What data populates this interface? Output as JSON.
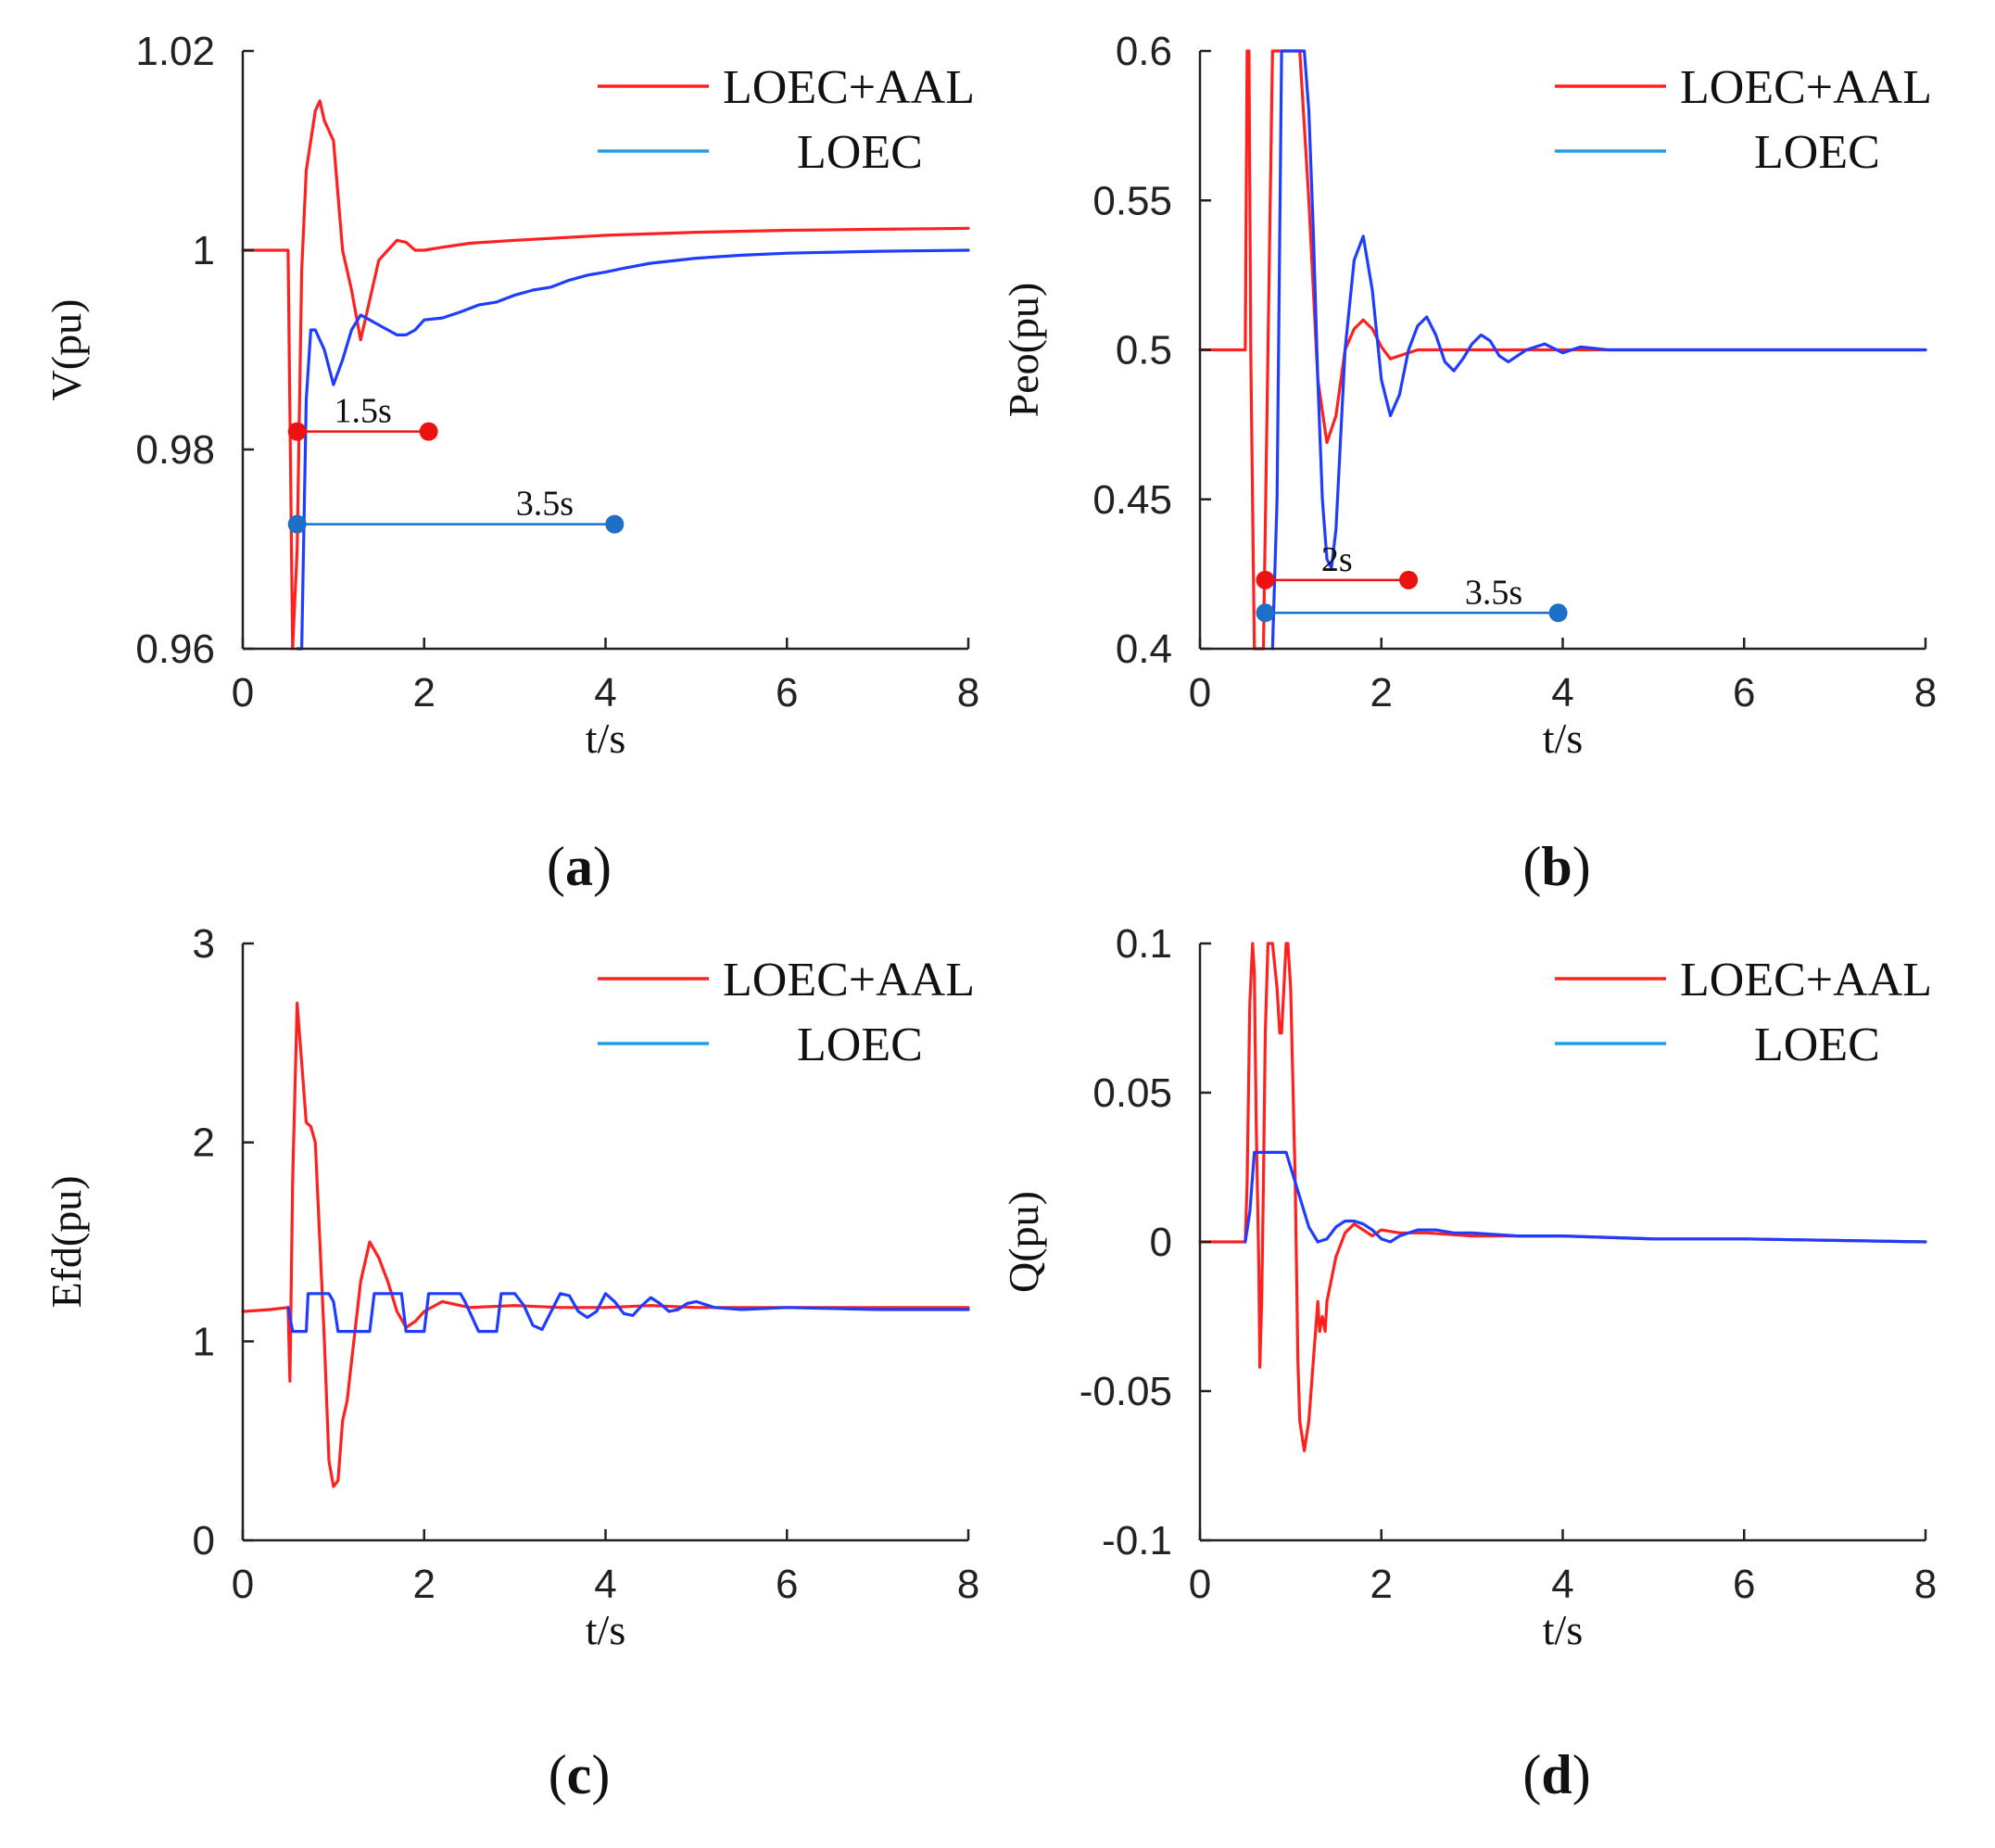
{
  "colors": {
    "loec_aal": "#ff2020",
    "loec": "#1f3dff",
    "loec_legend": "#1ea0e6",
    "marker_red": "#ee1111",
    "marker_blue": "#1e6fc8",
    "axis": "#222222"
  },
  "chart_data": [
    {
      "type": "line",
      "panel": "(a)",
      "panel_letter": "a",
      "xlabel": "t/s",
      "ylabel": "V(pu)",
      "xlim": [
        0,
        8
      ],
      "ylim": [
        0.96,
        1.02
      ],
      "xticks": [
        0,
        2,
        4,
        6,
        8
      ],
      "xtick_labels": [
        "0",
        "2",
        "4",
        "6",
        "8"
      ],
      "yticks": [
        0.96,
        0.98,
        1.0,
        1.02
      ],
      "ytick_labels": [
        "0.96",
        "0.98",
        "1",
        "1.02"
      ],
      "legend": {
        "position": "top-right",
        "entries": [
          "LOEC+AAL",
          "LOEC"
        ]
      },
      "series": [
        {
          "name": "LOEC+AAL",
          "x": [
            0,
            0.5,
            0.5,
            0.55,
            0.6,
            0.65,
            0.7,
            0.8,
            0.85,
            0.9,
            1.0,
            1.1,
            1.2,
            1.3,
            1.4,
            1.5,
            1.6,
            1.7,
            1.8,
            1.9,
            2.0,
            2.2,
            2.5,
            3.0,
            4.0,
            5.0,
            6.0,
            7.0,
            8.0
          ],
          "values": [
            1.0,
            1.0,
            1.0,
            0.958,
            0.97,
            0.998,
            1.008,
            1.014,
            1.015,
            1.013,
            1.011,
            1.0,
            0.996,
            0.991,
            0.995,
            0.999,
            1.0,
            1.001,
            1.0008,
            1.0,
            1.0,
            1.0003,
            1.0007,
            1.001,
            1.0015,
            1.0018,
            1.002,
            1.0021,
            1.0022
          ]
        },
        {
          "name": "LOEC",
          "x": [
            0.6,
            0.65,
            0.7,
            0.75,
            0.8,
            0.9,
            1.0,
            1.1,
            1.2,
            1.3,
            1.4,
            1.5,
            1.6,
            1.7,
            1.8,
            1.9,
            2.0,
            2.2,
            2.4,
            2.6,
            2.8,
            3.0,
            3.2,
            3.4,
            3.6,
            3.8,
            4.0,
            4.2,
            4.5,
            5.0,
            5.5,
            6.0,
            7.0,
            8.0
          ],
          "values": [
            0.958,
            0.96,
            0.985,
            0.992,
            0.992,
            0.99,
            0.9865,
            0.989,
            0.992,
            0.9935,
            0.993,
            0.9925,
            0.992,
            0.9915,
            0.9915,
            0.992,
            0.993,
            0.9932,
            0.9938,
            0.9945,
            0.9948,
            0.9955,
            0.996,
            0.9963,
            0.997,
            0.9975,
            0.9978,
            0.9982,
            0.9987,
            0.9992,
            0.9995,
            0.9997,
            0.9999,
            1.0
          ]
        }
      ],
      "annotations": [
        {
          "label": "1.5s",
          "x1": 0.6,
          "x2": 2.05,
          "y": 0.9818,
          "color": "red"
        },
        {
          "label": "3.5s",
          "x1": 0.6,
          "x2": 4.1,
          "y": 0.9725,
          "color": "blue"
        }
      ]
    },
    {
      "type": "line",
      "panel": "(b)",
      "panel_letter": "b",
      "xlabel": "t/s",
      "ylabel": "Peo(pu)",
      "xlim": [
        0,
        8
      ],
      "ylim": [
        0.4,
        0.6
      ],
      "xticks": [
        0,
        2,
        4,
        6,
        8
      ],
      "xtick_labels": [
        "0",
        "2",
        "4",
        "6",
        "8"
      ],
      "yticks": [
        0.4,
        0.45,
        0.5,
        0.55,
        0.6
      ],
      "ytick_labels": [
        "0.4",
        "0.45",
        "0.5",
        "0.55",
        "0.6"
      ],
      "legend": {
        "position": "top-right",
        "entries": [
          "LOEC+AAL",
          "LOEC"
        ]
      },
      "series": [
        {
          "name": "LOEC+AAL",
          "x": [
            0,
            0.5,
            0.52,
            0.54,
            0.56,
            0.6,
            0.65,
            0.7,
            0.75,
            0.8,
            0.85,
            0.9,
            1.0,
            1.1,
            1.2,
            1.3,
            1.4,
            1.5,
            1.6,
            1.7,
            1.8,
            1.9,
            2.0,
            2.1,
            2.2,
            2.4,
            2.6,
            3.0,
            4.0,
            8.0
          ],
          "values": [
            0.5,
            0.5,
            0.6,
            0.6,
            0.5,
            0.4,
            0.4,
            0.4,
            0.5,
            0.6,
            0.6,
            0.6,
            0.6,
            0.6,
            0.55,
            0.49,
            0.469,
            0.478,
            0.5,
            0.507,
            0.51,
            0.507,
            0.501,
            0.497,
            0.498,
            0.5,
            0.5,
            0.5,
            0.5,
            0.5
          ]
        },
        {
          "name": "LOEC",
          "x": [
            0.8,
            0.85,
            0.9,
            0.95,
            1.0,
            1.05,
            1.1,
            1.15,
            1.2,
            1.25,
            1.3,
            1.35,
            1.4,
            1.45,
            1.5,
            1.6,
            1.7,
            1.8,
            1.9,
            2.0,
            2.1,
            2.2,
            2.3,
            2.4,
            2.5,
            2.6,
            2.7,
            2.8,
            2.9,
            3.0,
            3.1,
            3.2,
            3.3,
            3.4,
            3.5,
            3.6,
            3.8,
            4.0,
            4.2,
            4.5,
            4.8,
            5.0,
            5.5,
            6.0,
            8.0
          ],
          "values": [
            0.4,
            0.45,
            0.6,
            0.6,
            0.6,
            0.6,
            0.6,
            0.6,
            0.58,
            0.54,
            0.49,
            0.45,
            0.43,
            0.427,
            0.44,
            0.5,
            0.53,
            0.538,
            0.52,
            0.49,
            0.478,
            0.485,
            0.5,
            0.508,
            0.511,
            0.505,
            0.496,
            0.493,
            0.497,
            0.502,
            0.505,
            0.503,
            0.498,
            0.496,
            0.498,
            0.5,
            0.502,
            0.499,
            0.501,
            0.5,
            0.5,
            0.5,
            0.5,
            0.5,
            0.5
          ]
        }
      ],
      "annotations": [
        {
          "label": "2s",
          "x1": 0.72,
          "x2": 2.3,
          "y": 0.423,
          "color": "red"
        },
        {
          "label": "3.5s",
          "x1": 0.72,
          "x2": 3.95,
          "y": 0.412,
          "color": "blue"
        }
      ]
    },
    {
      "type": "line",
      "panel": "(c)",
      "panel_letter": "c",
      "xlabel": "t/s",
      "ylabel": "Efd(pu)",
      "xlim": [
        0,
        8
      ],
      "ylim": [
        0,
        3
      ],
      "xticks": [
        0,
        2,
        4,
        6,
        8
      ],
      "xtick_labels": [
        "0",
        "2",
        "4",
        "6",
        "8"
      ],
      "yticks": [
        0,
        1,
        2,
        3
      ],
      "ytick_labels": [
        "0",
        "1",
        "2",
        "3"
      ],
      "legend": {
        "position": "top-right",
        "entries": [
          "LOEC+AAL",
          "LOEC"
        ]
      },
      "series": [
        {
          "name": "LOEC+AAL",
          "x": [
            0,
            0.3,
            0.5,
            0.52,
            0.55,
            0.6,
            0.65,
            0.7,
            0.75,
            0.8,
            0.85,
            0.9,
            0.95,
            1.0,
            1.05,
            1.1,
            1.15,
            1.2,
            1.3,
            1.4,
            1.5,
            1.6,
            1.7,
            1.8,
            1.9,
            2.0,
            2.2,
            2.5,
            3.0,
            3.5,
            4.0,
            4.5,
            5.0,
            6.0,
            7.0,
            8.0
          ],
          "values": [
            1.15,
            1.16,
            1.17,
            0.8,
            1.8,
            2.7,
            2.4,
            2.1,
            2.08,
            2.0,
            1.5,
            1.0,
            0.4,
            0.27,
            0.3,
            0.6,
            0.7,
            0.9,
            1.3,
            1.5,
            1.42,
            1.3,
            1.15,
            1.07,
            1.1,
            1.15,
            1.2,
            1.17,
            1.18,
            1.17,
            1.17,
            1.18,
            1.17,
            1.17,
            1.17,
            1.17
          ]
        },
        {
          "name": "LOEC",
          "x": [
            0.5,
            0.55,
            0.6,
            0.7,
            0.72,
            0.95,
            1.0,
            1.05,
            1.1,
            1.4,
            1.45,
            1.75,
            1.8,
            2.0,
            2.05,
            2.4,
            2.45,
            2.6,
            2.65,
            2.8,
            2.85,
            3.0,
            3.1,
            3.2,
            3.3,
            3.4,
            3.5,
            3.6,
            3.7,
            3.8,
            3.9,
            4.0,
            4.1,
            4.2,
            4.3,
            4.4,
            4.5,
            4.6,
            4.7,
            4.8,
            4.9,
            5.0,
            5.2,
            5.5,
            6.0,
            7.0,
            8.0
          ],
          "values": [
            1.17,
            1.05,
            1.05,
            1.05,
            1.24,
            1.24,
            1.2,
            1.05,
            1.05,
            1.05,
            1.24,
            1.24,
            1.05,
            1.05,
            1.24,
            1.24,
            1.2,
            1.05,
            1.05,
            1.05,
            1.24,
            1.24,
            1.18,
            1.08,
            1.06,
            1.15,
            1.24,
            1.23,
            1.15,
            1.12,
            1.15,
            1.24,
            1.2,
            1.14,
            1.13,
            1.18,
            1.22,
            1.19,
            1.15,
            1.16,
            1.19,
            1.2,
            1.17,
            1.16,
            1.17,
            1.16,
            1.16
          ]
        }
      ],
      "annotations": []
    },
    {
      "type": "line",
      "panel": "(d)",
      "panel_letter": "d",
      "xlabel": "t/s",
      "ylabel": "Q(pu)",
      "xlim": [
        0,
        8
      ],
      "ylim": [
        -0.1,
        0.1
      ],
      "xticks": [
        0,
        2,
        4,
        6,
        8
      ],
      "xtick_labels": [
        "0",
        "2",
        "4",
        "6",
        "8"
      ],
      "yticks": [
        -0.1,
        -0.05,
        0,
        0.05,
        0.1
      ],
      "ytick_labels": [
        "-0.1",
        "-0.05",
        "0",
        "0.05",
        "0.1"
      ],
      "legend": {
        "position": "top-right",
        "entries": [
          "LOEC+AAL",
          "LOEC"
        ]
      },
      "series": [
        {
          "name": "LOEC+AAL",
          "x": [
            0,
            0.5,
            0.52,
            0.55,
            0.58,
            0.6,
            0.62,
            0.65,
            0.66,
            0.68,
            0.7,
            0.72,
            0.75,
            0.78,
            0.8,
            0.85,
            0.88,
            0.9,
            0.95,
            0.97,
            1.0,
            1.05,
            1.08,
            1.1,
            1.15,
            1.2,
            1.25,
            1.3,
            1.32,
            1.35,
            1.38,
            1.4,
            1.5,
            1.6,
            1.7,
            1.8,
            1.9,
            2.0,
            2.2,
            2.5,
            3.0,
            4.0,
            5.0,
            6.0,
            8.0
          ],
          "values": [
            0,
            0,
            0.02,
            0.08,
            0.1,
            0.09,
            0.04,
            -0.01,
            -0.042,
            -0.02,
            0.02,
            0.07,
            0.1,
            0.1,
            0.1,
            0.085,
            0.07,
            0.07,
            0.1,
            0.1,
            0.085,
            0.02,
            -0.04,
            -0.06,
            -0.07,
            -0.06,
            -0.04,
            -0.02,
            -0.03,
            -0.025,
            -0.03,
            -0.02,
            -0.005,
            0.003,
            0.006,
            0.004,
            0.002,
            0.004,
            0.003,
            0.003,
            0.002,
            0.002,
            0.001,
            0.001,
            0.0
          ]
        },
        {
          "name": "LOEC",
          "x": [
            0.5,
            0.55,
            0.6,
            0.7,
            0.9,
            0.95,
            1.0,
            1.1,
            1.2,
            1.3,
            1.4,
            1.5,
            1.6,
            1.7,
            1.8,
            1.9,
            2.0,
            2.1,
            2.2,
            2.4,
            2.6,
            2.8,
            3.0,
            3.5,
            4.0,
            5.0,
            6.0,
            8.0
          ],
          "values": [
            0,
            0.01,
            0.03,
            0.03,
            0.03,
            0.03,
            0.025,
            0.015,
            0.005,
            0.0,
            0.001,
            0.005,
            0.007,
            0.007,
            0.006,
            0.004,
            0.001,
            0.0,
            0.002,
            0.004,
            0.004,
            0.003,
            0.003,
            0.002,
            0.002,
            0.001,
            0.001,
            0.0
          ]
        }
      ],
      "annotations": []
    }
  ]
}
